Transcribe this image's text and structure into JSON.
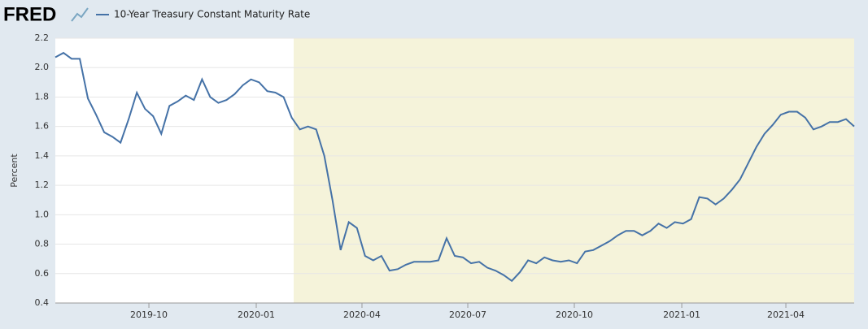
{
  "chart_data": {
    "type": "line",
    "logo": "FRED",
    "ylabel": "Percent",
    "series": [
      {
        "name": "10-Year Treasury Constant Maturity Rate",
        "color": "#4572a7",
        "values": [
          2.07,
          2.1,
          2.06,
          2.06,
          1.79,
          1.68,
          1.56,
          1.53,
          1.49,
          1.65,
          1.83,
          1.72,
          1.67,
          1.55,
          1.74,
          1.77,
          1.81,
          1.78,
          1.92,
          1.8,
          1.76,
          1.78,
          1.82,
          1.88,
          1.92,
          1.9,
          1.84,
          1.83,
          1.8,
          1.66,
          1.58,
          1.6,
          1.58,
          1.4,
          1.1,
          0.76,
          0.95,
          0.91,
          0.72,
          0.69,
          0.72,
          0.62,
          0.63,
          0.66,
          0.68,
          0.68,
          0.68,
          0.69,
          0.84,
          0.72,
          0.71,
          0.67,
          0.68,
          0.64,
          0.62,
          0.59,
          0.55,
          0.61,
          0.69,
          0.67,
          0.71,
          0.69,
          0.68,
          0.69,
          0.67,
          0.75,
          0.76,
          0.79,
          0.82,
          0.86,
          0.89,
          0.89,
          0.86,
          0.89,
          0.94,
          0.91,
          0.95,
          0.94,
          0.97,
          1.12,
          1.11,
          1.07,
          1.11,
          1.17,
          1.24,
          1.35,
          1.46,
          1.55,
          1.61,
          1.68,
          1.7,
          1.7,
          1.66,
          1.58,
          1.6,
          1.63,
          1.63,
          1.65,
          1.6
        ]
      }
    ],
    "xlim": [
      0,
      98
    ],
    "xticks": [
      {
        "value": 11.48,
        "label": "2019-10"
      },
      {
        "value": 24.65,
        "label": "2020-01"
      },
      {
        "value": 37.62,
        "label": "2020-04"
      },
      {
        "value": 50.6,
        "label": "2020-07"
      },
      {
        "value": 63.67,
        "label": "2020-10"
      },
      {
        "value": 76.85,
        "label": "2021-01"
      },
      {
        "value": 89.62,
        "label": "2021-04"
      }
    ],
    "shade_start": 29.24,
    "shade_color": "#f5f3da",
    "ylim": [
      0.4,
      2.2
    ],
    "yticks": [
      0.4,
      0.6,
      0.8,
      {
        "value": 1,
        "label": "1.0"
      },
      1.2,
      1.4,
      1.6,
      1.8,
      {
        "value": 2,
        "label": "2.0"
      },
      2.2
    ],
    "grid": true
  }
}
